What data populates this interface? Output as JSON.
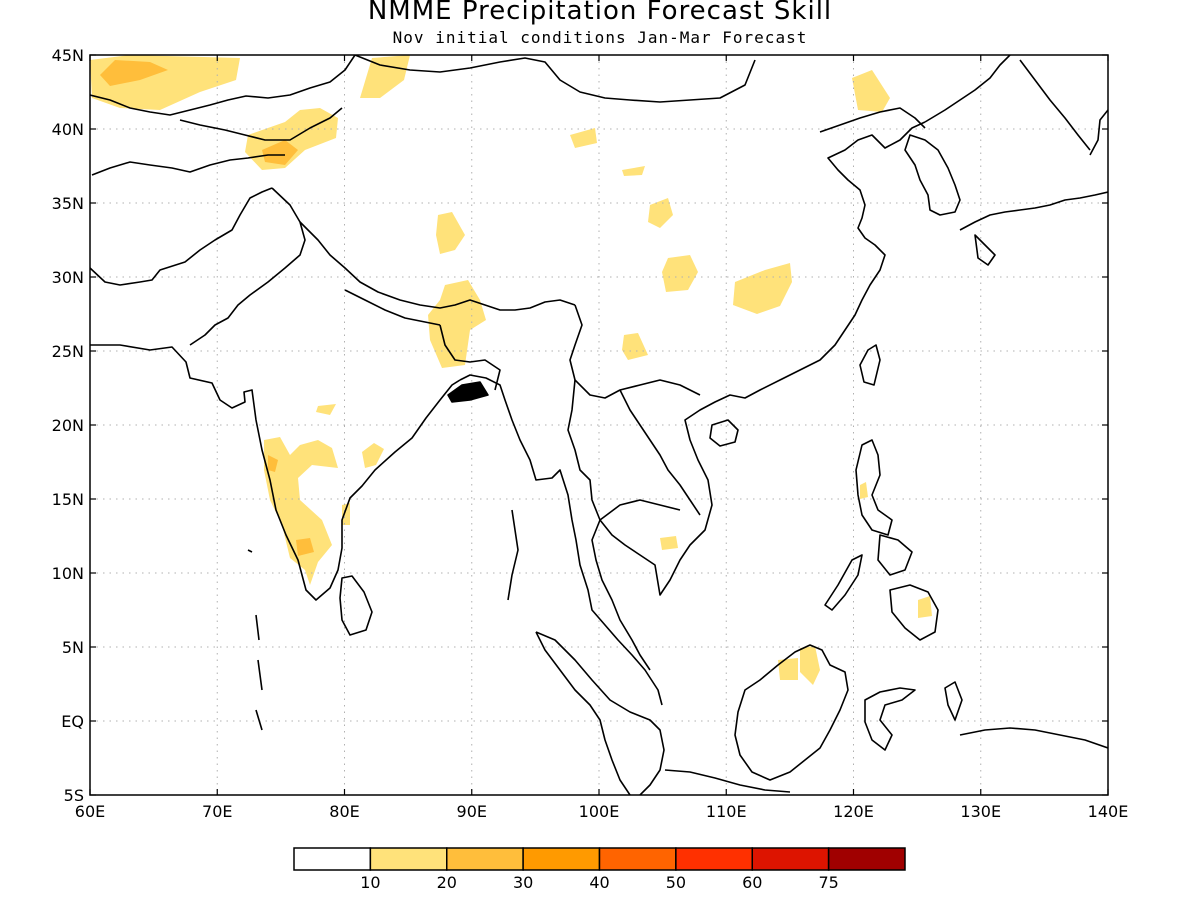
{
  "title": "NMME Precipitation Forecast Skill",
  "subtitle": "Nov initial conditions   Jan-Mar Forecast",
  "map": {
    "lon_range": [
      60,
      140
    ],
    "lat_range": [
      -5,
      45
    ],
    "lat_labels": [
      "45N",
      "40N",
      "35N",
      "30N",
      "25N",
      "20N",
      "15N",
      "10N",
      "5N",
      "EQ",
      "5S"
    ],
    "lat_values": [
      45,
      40,
      35,
      30,
      25,
      20,
      15,
      10,
      5,
      0,
      -5
    ],
    "lon_labels": [
      "60E",
      "70E",
      "80E",
      "90E",
      "100E",
      "110E",
      "120E",
      "130E",
      "140E"
    ],
    "lon_values": [
      60,
      70,
      80,
      90,
      100,
      110,
      120,
      130,
      140
    ],
    "coastline_color": "#000000",
    "grid_color": "#b0b0b0"
  },
  "legend": {
    "labels": [
      "10",
      "20",
      "30",
      "40",
      "50",
      "60",
      "75"
    ],
    "colors": [
      "#ffffff",
      "#ffe27a",
      "#ffbe3b",
      "#ff9a00",
      "#ff6400",
      "#ff3000",
      "#dd1400",
      "#a00000"
    ]
  }
}
